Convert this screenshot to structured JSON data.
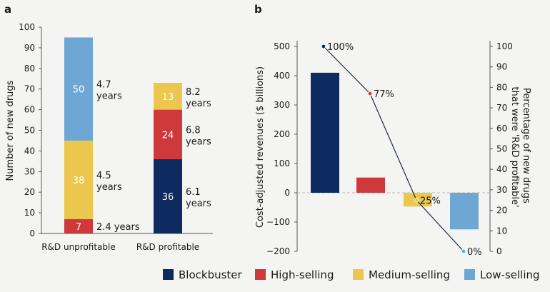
{
  "panels": {
    "a": "a",
    "b": "b"
  },
  "colors": {
    "blockbuster": "#0d2b5e",
    "high": "#d0393c",
    "medium": "#ecc74e",
    "low": "#6fa7d4",
    "line": "#1f2d4a",
    "zero_line": "#b9b9b9"
  },
  "chart_data": [
    {
      "panel": "a",
      "type": "bar",
      "stacked": true,
      "ylabel": "Number of new drugs",
      "ylim": [
        0,
        100
      ],
      "yticks": [
        0,
        10,
        20,
        30,
        40,
        50,
        60,
        70,
        80,
        90,
        100
      ],
      "categories": [
        "R&D unprofitable",
        "R&D profitable"
      ],
      "series": [
        {
          "name": "Blockbuster",
          "color": "#0d2b5e",
          "values": [
            0,
            36
          ],
          "labels": [
            "",
            "36"
          ],
          "duration": [
            "",
            "6.1 years"
          ]
        },
        {
          "name": "High-selling",
          "color": "#d0393c",
          "values": [
            7,
            24
          ],
          "labels": [
            "7",
            "24"
          ],
          "duration": [
            "2.4 years",
            "6.8 years"
          ]
        },
        {
          "name": "Medium-selling",
          "color": "#ecc74e",
          "values": [
            38,
            13
          ],
          "labels": [
            "38",
            "13"
          ],
          "duration": [
            "4.5 years",
            "8.2 years"
          ]
        },
        {
          "name": "Low-selling",
          "color": "#6fa7d4",
          "values": [
            50,
            0
          ],
          "labels": [
            "50",
            ""
          ],
          "duration": [
            "4.7 years",
            ""
          ]
        }
      ]
    },
    {
      "panel": "b",
      "type": "bar",
      "ylabel": "Cost-adjusted revenues ($ billions)",
      "ylim": [
        -200,
        500
      ],
      "yticks": [
        -200,
        -100,
        0,
        100,
        200,
        300,
        400,
        500
      ],
      "categories": [
        "Blockbuster",
        "High-selling",
        "Medium-selling",
        "Low-selling"
      ],
      "values": [
        410,
        52,
        -47,
        -125
      ],
      "colors": [
        "#0d2b5e",
        "#d0393c",
        "#ecc74e",
        "#6fa7d4"
      ],
      "secondary": {
        "type": "line",
        "ylabel": "Percentage of new drugs that were 'R&D profitable'",
        "ylim": [
          0,
          100
        ],
        "yticks": [
          0,
          10,
          20,
          30,
          40,
          50,
          60,
          70,
          80,
          90,
          100
        ],
        "values": [
          100,
          77,
          25,
          0
        ],
        "labels": [
          "100%",
          "77%",
          "25%",
          "0%"
        ]
      }
    }
  ],
  "legend": [
    {
      "label": "Blockbuster",
      "color": "#0d2b5e"
    },
    {
      "label": "High-selling",
      "color": "#d0393c"
    },
    {
      "label": "Medium-selling",
      "color": "#ecc74e"
    },
    {
      "label": "Low-selling",
      "color": "#6fa7d4"
    }
  ]
}
